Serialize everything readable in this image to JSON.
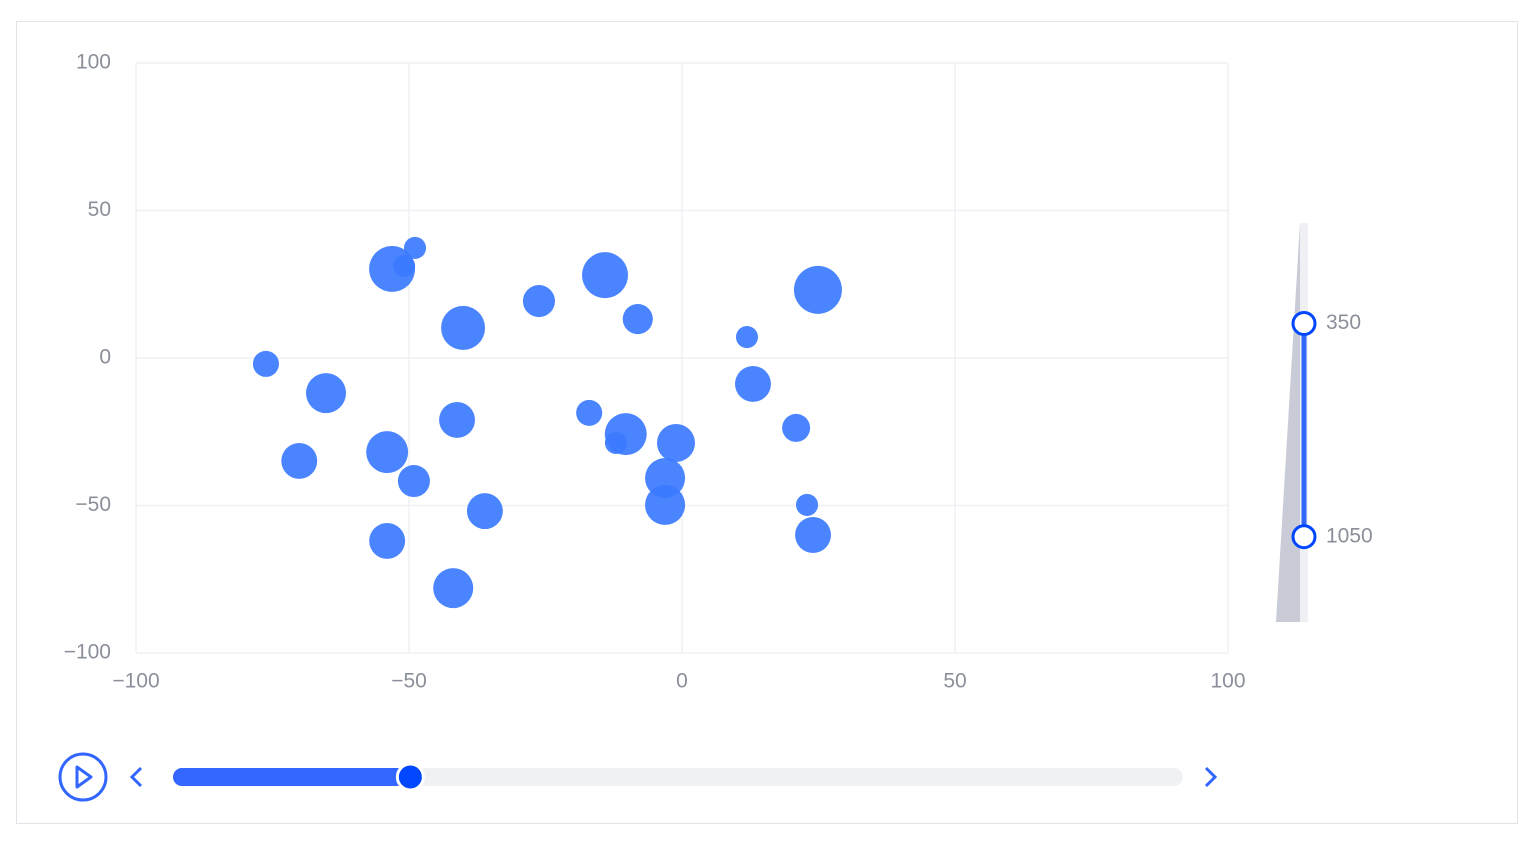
{
  "chart_data": {
    "type": "scatter",
    "x": [
      -76.2,
      -65.2,
      -70.1,
      -54.0,
      -53.1,
      -48.9,
      -50.9,
      -49.1,
      -54.0,
      -40.1,
      -41.2,
      -36.1,
      -41.9,
      -26.2,
      -14.1,
      -8.1,
      -17.0,
      -10.3,
      -12.1,
      -1.1,
      -3.1,
      -3.1,
      11.9,
      13.0,
      24.9,
      20.9,
      22.9,
      24.0
    ],
    "series": [
      {
        "color": "#3b7bff",
        "values": [
          -2.0,
          -11.9,
          -34.9,
          -31.9,
          30.2,
          37.3,
          31.2,
          -41.7,
          -62.0,
          10.2,
          -21.0,
          -51.9,
          -78.0,
          19.3,
          28.1,
          13.2,
          -18.6,
          -25.8,
          -28.8,
          -28.8,
          -40.7,
          -49.8,
          7.1,
          -8.8,
          23.1,
          -23.7,
          -49.8,
          -60.0
        ],
        "sizes": [
          390,
          920,
          740,
          1010,
          1210,
          280,
          280,
          590,
          740,
          1110,
          740,
          740,
          920,
          590,
          1210,
          520,
          390,
          1010,
          280,
          830,
          920,
          920,
          280,
          740,
          1320,
          450,
          280,
          740
        ]
      }
    ],
    "xlim": [
      -100,
      100
    ],
    "xticks": [
      {
        "value": -100,
        "label": "−100"
      },
      {
        "value": -50,
        "label": "−50"
      },
      0,
      50,
      100
    ],
    "ylim": [
      -100,
      100
    ],
    "yticks": [
      {
        "value": -100,
        "label": "−100"
      },
      {
        "value": -50,
        "label": "−50"
      },
      0,
      50,
      100
    ],
    "grid": true,
    "size_legend": {
      "range": [
        20,
        1330
      ],
      "selected": [
        350,
        1050
      ]
    },
    "timeline_position": 0.235
  }
}
